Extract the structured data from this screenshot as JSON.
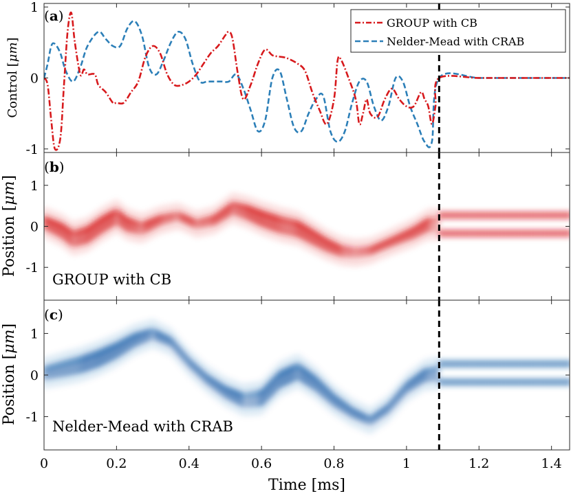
{
  "chart_data": [
    {
      "panel": "a",
      "type": "line",
      "ylabel_text": "Control [",
      "ylabel_unit": "μm",
      "ylabel_close": "]",
      "ylim": [
        -1.05,
        1.05
      ],
      "xlim": [
        0,
        1.45
      ],
      "yticks": [
        -1,
        0,
        1
      ],
      "ytick_labels": [
        "-1",
        "0",
        "1"
      ],
      "marker_time": 1.09,
      "legend": {
        "placement": "top-right",
        "entries": [
          "GROUP with CB",
          "Nelder-Mead with CRAB"
        ]
      },
      "series": [
        {
          "name": "GROUP with CB",
          "color": "#d7191c",
          "style": "dash-dot",
          "x": [
            0,
            0.01,
            0.02,
            0.03,
            0.045,
            0.055,
            0.065,
            0.075,
            0.085,
            0.1,
            0.11,
            0.12,
            0.14,
            0.15,
            0.17,
            0.19,
            0.2,
            0.22,
            0.24,
            0.26,
            0.28,
            0.3,
            0.32,
            0.34,
            0.36,
            0.38,
            0.4,
            0.42,
            0.44,
            0.46,
            0.48,
            0.5,
            0.51,
            0.52,
            0.535,
            0.55,
            0.57,
            0.59,
            0.61,
            0.63,
            0.65,
            0.67,
            0.7,
            0.72,
            0.74,
            0.76,
            0.78,
            0.8,
            0.81,
            0.82,
            0.84,
            0.86,
            0.87,
            0.88,
            0.89,
            0.9,
            0.92,
            0.94,
            0.96,
            0.98,
            1.0,
            1.02,
            1.04,
            1.05,
            1.06,
            1.07,
            1.08,
            1.09,
            1.2,
            1.3,
            1.45
          ],
          "y": [
            0,
            -0.1,
            -0.6,
            -1.0,
            -0.85,
            -0.1,
            0.65,
            0.92,
            0.5,
            0.05,
            0.12,
            0.05,
            0.05,
            -0.1,
            -0.2,
            -0.35,
            -0.35,
            -0.35,
            -0.2,
            -0.05,
            0.3,
            0.45,
            0.35,
            0.05,
            -0.1,
            -0.1,
            -0.05,
            0.05,
            0.2,
            0.35,
            0.45,
            0.6,
            0.65,
            0.55,
            0.05,
            -0.3,
            -0.1,
            0.2,
            0.4,
            0.32,
            0.3,
            0.28,
            0.2,
            0.1,
            -0.2,
            -0.45,
            -0.65,
            -0.3,
            0.25,
            0.25,
            0.0,
            -0.3,
            -0.65,
            -0.5,
            -0.3,
            -0.5,
            -0.55,
            -0.3,
            -0.15,
            -0.3,
            -0.4,
            -0.4,
            -0.2,
            -0.3,
            -0.4,
            -0.65,
            -0.4,
            0.0,
            0.0,
            0.0,
            0.0
          ]
        },
        {
          "name": "Nelder-Mead with CRAB",
          "color": "#2c7fb8",
          "style": "dashed",
          "x": [
            0,
            0.01,
            0.02,
            0.03,
            0.045,
            0.06,
            0.08,
            0.1,
            0.12,
            0.15,
            0.17,
            0.19,
            0.21,
            0.23,
            0.25,
            0.27,
            0.29,
            0.31,
            0.33,
            0.35,
            0.37,
            0.39,
            0.41,
            0.43,
            0.45,
            0.47,
            0.49,
            0.51,
            0.53,
            0.55,
            0.57,
            0.59,
            0.61,
            0.63,
            0.65,
            0.67,
            0.69,
            0.71,
            0.73,
            0.75,
            0.77,
            0.79,
            0.81,
            0.83,
            0.85,
            0.87,
            0.89,
            0.91,
            0.93,
            0.95,
            0.97,
            0.99,
            1.01,
            1.03,
            1.05,
            1.07,
            1.09,
            1.2,
            1.3,
            1.45
          ],
          "y": [
            0,
            0.2,
            0.45,
            0.48,
            0.35,
            0.1,
            -0.05,
            0.15,
            0.45,
            0.65,
            0.55,
            0.45,
            0.45,
            0.7,
            0.8,
            0.6,
            0.15,
            0.05,
            0.25,
            0.5,
            0.65,
            0.55,
            0.2,
            -0.05,
            -0.05,
            -0.05,
            -0.05,
            -0.05,
            0.05,
            -0.15,
            -0.45,
            -0.75,
            -0.6,
            0.0,
            0.1,
            -0.3,
            -0.7,
            -0.75,
            -0.5,
            -0.3,
            -0.25,
            -0.75,
            -0.9,
            -0.75,
            -0.35,
            -0.05,
            -0.05,
            -0.4,
            -0.6,
            -0.4,
            0.0,
            -0.05,
            -0.4,
            -0.65,
            -0.9,
            -0.9,
            0.0,
            0.0,
            0.0,
            0.0
          ]
        }
      ]
    },
    {
      "panel": "b",
      "type": "heatmap",
      "label": "GROUP with CB",
      "color": "#d7191c",
      "ylabel_text": "Position [",
      "ylabel_unit": "μm",
      "ylabel_close": "]",
      "ylim": [
        -1.8,
        1.8
      ],
      "xlim": [
        0,
        1.45
      ],
      "yticks": [
        -1,
        0,
        1
      ],
      "ytick_labels": [
        "-1",
        "0",
        "1"
      ],
      "marker_time": 1.09,
      "center_x": [
        0,
        0.05,
        0.08,
        0.12,
        0.16,
        0.2,
        0.23,
        0.27,
        0.32,
        0.37,
        0.42,
        0.47,
        0.52,
        0.56,
        0.6,
        0.65,
        0.7,
        0.74,
        0.78,
        0.82,
        0.86,
        0.9,
        0.94,
        0.98,
        1.02,
        1.06,
        1.09,
        1.2,
        1.3,
        1.45
      ],
      "center_y": [
        0.1,
        -0.1,
        -0.3,
        -0.2,
        0.05,
        0.25,
        0.05,
        -0.05,
        0.15,
        0.25,
        0.05,
        0.15,
        0.45,
        0.35,
        0.2,
        0.05,
        -0.05,
        -0.25,
        -0.45,
        -0.6,
        -0.65,
        -0.6,
        -0.45,
        -0.3,
        -0.15,
        0.05,
        0.05,
        0.05,
        0.05,
        0.05
      ],
      "split_start": 1.09,
      "split_offset": 0.22
    },
    {
      "panel": "c",
      "type": "heatmap",
      "label": "Nelder-Mead with CRAB",
      "color": "#2166ac",
      "ylabel_text": "Position [",
      "ylabel_unit": "μm",
      "ylabel_close": "]",
      "xlabel": "Time [ms]",
      "ylim": [
        -1.8,
        1.8
      ],
      "xlim": [
        0,
        1.45
      ],
      "yticks": [
        -1,
        0,
        1
      ],
      "ytick_labels": [
        "-1",
        "0",
        "1"
      ],
      "xticks": [
        0,
        0.2,
        0.4,
        0.6,
        0.8,
        1,
        1.2,
        1.4
      ],
      "xtick_labels": [
        "0",
        "0.2",
        "0.4",
        "0.6",
        "0.8",
        "1",
        "1.2",
        "1.4"
      ],
      "marker_time": 1.09,
      "center_x": [
        0,
        0.05,
        0.1,
        0.15,
        0.2,
        0.25,
        0.3,
        0.35,
        0.4,
        0.45,
        0.5,
        0.55,
        0.6,
        0.65,
        0.7,
        0.75,
        0.8,
        0.85,
        0.9,
        0.95,
        1.0,
        1.05,
        1.09,
        1.2,
        1.3,
        1.45
      ],
      "center_y": [
        0.05,
        0.15,
        0.25,
        0.4,
        0.6,
        0.85,
        1.0,
        0.8,
        0.3,
        -0.1,
        -0.4,
        -0.6,
        -0.55,
        -0.1,
        0.1,
        -0.2,
        -0.6,
        -0.9,
        -1.1,
        -0.8,
        -0.3,
        0.0,
        0.05,
        0.05,
        0.05,
        0.05
      ],
      "split_start": 1.09,
      "split_offset": 0.22
    }
  ],
  "panel_tags": {
    "a": "a",
    "b": "b",
    "c": "c",
    "open": "(",
    "close": ")"
  }
}
